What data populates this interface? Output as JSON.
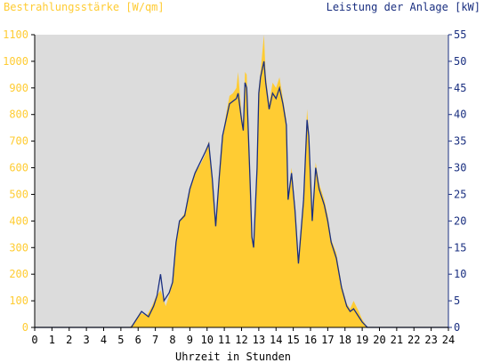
{
  "chart_data": {
    "type": "area",
    "title_left": "Bestrahlungsstärke [W/qm]",
    "title_right": "Leistung der Anlage [kW]",
    "xlabel": "Uhrzeit in Stunden",
    "xlim": [
      0,
      24
    ],
    "ylim_left": [
      0,
      1100
    ],
    "ylim_right": [
      0,
      55
    ],
    "x_ticks": [
      "0",
      "1",
      "2",
      "3",
      "4",
      "5",
      "6",
      "7",
      "8",
      "9",
      "10",
      "11",
      "12",
      "13",
      "14",
      "15",
      "16",
      "17",
      "18",
      "19",
      "20",
      "21",
      "22",
      "23",
      "24"
    ],
    "y_left_ticks": [
      "0",
      "100",
      "200",
      "300",
      "400",
      "500",
      "600",
      "700",
      "800",
      "900",
      "1000",
      "1100"
    ],
    "y_right_ticks": [
      "0",
      "5",
      "10",
      "15",
      "20",
      "25",
      "30",
      "35",
      "40",
      "45",
      "50",
      "55"
    ],
    "grid": false,
    "colors": {
      "plot_bg": "#dcdcdc",
      "irradiance": "#ffcc33",
      "power": "#1a2f80",
      "left_axis_text": "#ffcc33",
      "right_axis_text": "#1a2f80"
    },
    "series": [
      {
        "axis": "left",
        "style": "filled-area",
        "points": [
          [
            0,
            0
          ],
          [
            5.5,
            0
          ],
          [
            5.8,
            20
          ],
          [
            6.1,
            55
          ],
          [
            6.5,
            45
          ],
          [
            6.8,
            80
          ],
          [
            7.0,
            110
          ],
          [
            7.3,
            140
          ],
          [
            7.6,
            80
          ],
          [
            7.8,
            120
          ],
          [
            8.0,
            170
          ],
          [
            8.2,
            330
          ],
          [
            8.4,
            400
          ],
          [
            8.7,
            430
          ],
          [
            9.0,
            520
          ],
          [
            9.3,
            580
          ],
          [
            9.6,
            610
          ],
          [
            9.9,
            650
          ],
          [
            10.1,
            700
          ],
          [
            10.3,
            560
          ],
          [
            10.5,
            380
          ],
          [
            10.7,
            560
          ],
          [
            10.9,
            720
          ],
          [
            11.1,
            800
          ],
          [
            11.3,
            870
          ],
          [
            11.5,
            880
          ],
          [
            11.7,
            900
          ],
          [
            11.8,
            960
          ],
          [
            12.0,
            800
          ],
          [
            12.1,
            760
          ],
          [
            12.2,
            960
          ],
          [
            12.3,
            950
          ],
          [
            12.5,
            560
          ],
          [
            12.6,
            340
          ],
          [
            12.7,
            300
          ],
          [
            12.9,
            620
          ],
          [
            13.0,
            900
          ],
          [
            13.1,
            960
          ],
          [
            13.3,
            1100
          ],
          [
            13.4,
            950
          ],
          [
            13.6,
            840
          ],
          [
            13.8,
            920
          ],
          [
            14.0,
            900
          ],
          [
            14.2,
            940
          ],
          [
            14.4,
            860
          ],
          [
            14.6,
            780
          ],
          [
            14.7,
            500
          ],
          [
            14.9,
            600
          ],
          [
            15.1,
            460
          ],
          [
            15.3,
            240
          ],
          [
            15.6,
            500
          ],
          [
            15.8,
            820
          ],
          [
            15.9,
            740
          ],
          [
            16.1,
            420
          ],
          [
            16.3,
            620
          ],
          [
            16.5,
            540
          ],
          [
            16.8,
            480
          ],
          [
            17.0,
            420
          ],
          [
            17.2,
            330
          ],
          [
            17.5,
            280
          ],
          [
            17.8,
            160
          ],
          [
            18.1,
            90
          ],
          [
            18.3,
            70
          ],
          [
            18.5,
            100
          ],
          [
            18.8,
            60
          ],
          [
            19.0,
            30
          ],
          [
            19.3,
            0
          ],
          [
            24,
            0
          ]
        ]
      },
      {
        "axis": "right",
        "style": "line",
        "points": [
          [
            0,
            0
          ],
          [
            5.6,
            0
          ],
          [
            5.9,
            1.5
          ],
          [
            6.2,
            3
          ],
          [
            6.6,
            2
          ],
          [
            6.9,
            4
          ],
          [
            7.1,
            6
          ],
          [
            7.3,
            10
          ],
          [
            7.5,
            5
          ],
          [
            7.8,
            6.5
          ],
          [
            8.0,
            8.5
          ],
          [
            8.2,
            16
          ],
          [
            8.4,
            20
          ],
          [
            8.7,
            21
          ],
          [
            9.0,
            26
          ],
          [
            9.3,
            29
          ],
          [
            9.6,
            31
          ],
          [
            9.9,
            33
          ],
          [
            10.1,
            34.5
          ],
          [
            10.3,
            28
          ],
          [
            10.5,
            19
          ],
          [
            10.7,
            28
          ],
          [
            10.9,
            36
          ],
          [
            11.1,
            39
          ],
          [
            11.3,
            42
          ],
          [
            11.5,
            42.5
          ],
          [
            11.7,
            43
          ],
          [
            11.8,
            44
          ],
          [
            12.0,
            39
          ],
          [
            12.1,
            37
          ],
          [
            12.2,
            46
          ],
          [
            12.3,
            45
          ],
          [
            12.5,
            27
          ],
          [
            12.6,
            17
          ],
          [
            12.7,
            15
          ],
          [
            12.9,
            30
          ],
          [
            13.0,
            44
          ],
          [
            13.1,
            47
          ],
          [
            13.3,
            50
          ],
          [
            13.4,
            46
          ],
          [
            13.6,
            41
          ],
          [
            13.8,
            44
          ],
          [
            14.0,
            43
          ],
          [
            14.2,
            45
          ],
          [
            14.4,
            42
          ],
          [
            14.6,
            38
          ],
          [
            14.7,
            24
          ],
          [
            14.9,
            29
          ],
          [
            15.1,
            22
          ],
          [
            15.3,
            12
          ],
          [
            15.6,
            24
          ],
          [
            15.8,
            39
          ],
          [
            15.9,
            36
          ],
          [
            16.1,
            20
          ],
          [
            16.3,
            30
          ],
          [
            16.5,
            26
          ],
          [
            16.8,
            23
          ],
          [
            17.0,
            20
          ],
          [
            17.2,
            16
          ],
          [
            17.5,
            13
          ],
          [
            17.8,
            7.5
          ],
          [
            18.1,
            4
          ],
          [
            18.3,
            3
          ],
          [
            18.5,
            3.5
          ],
          [
            18.8,
            2
          ],
          [
            19.0,
            1
          ],
          [
            19.3,
            0
          ],
          [
            24,
            0
          ]
        ]
      }
    ]
  }
}
